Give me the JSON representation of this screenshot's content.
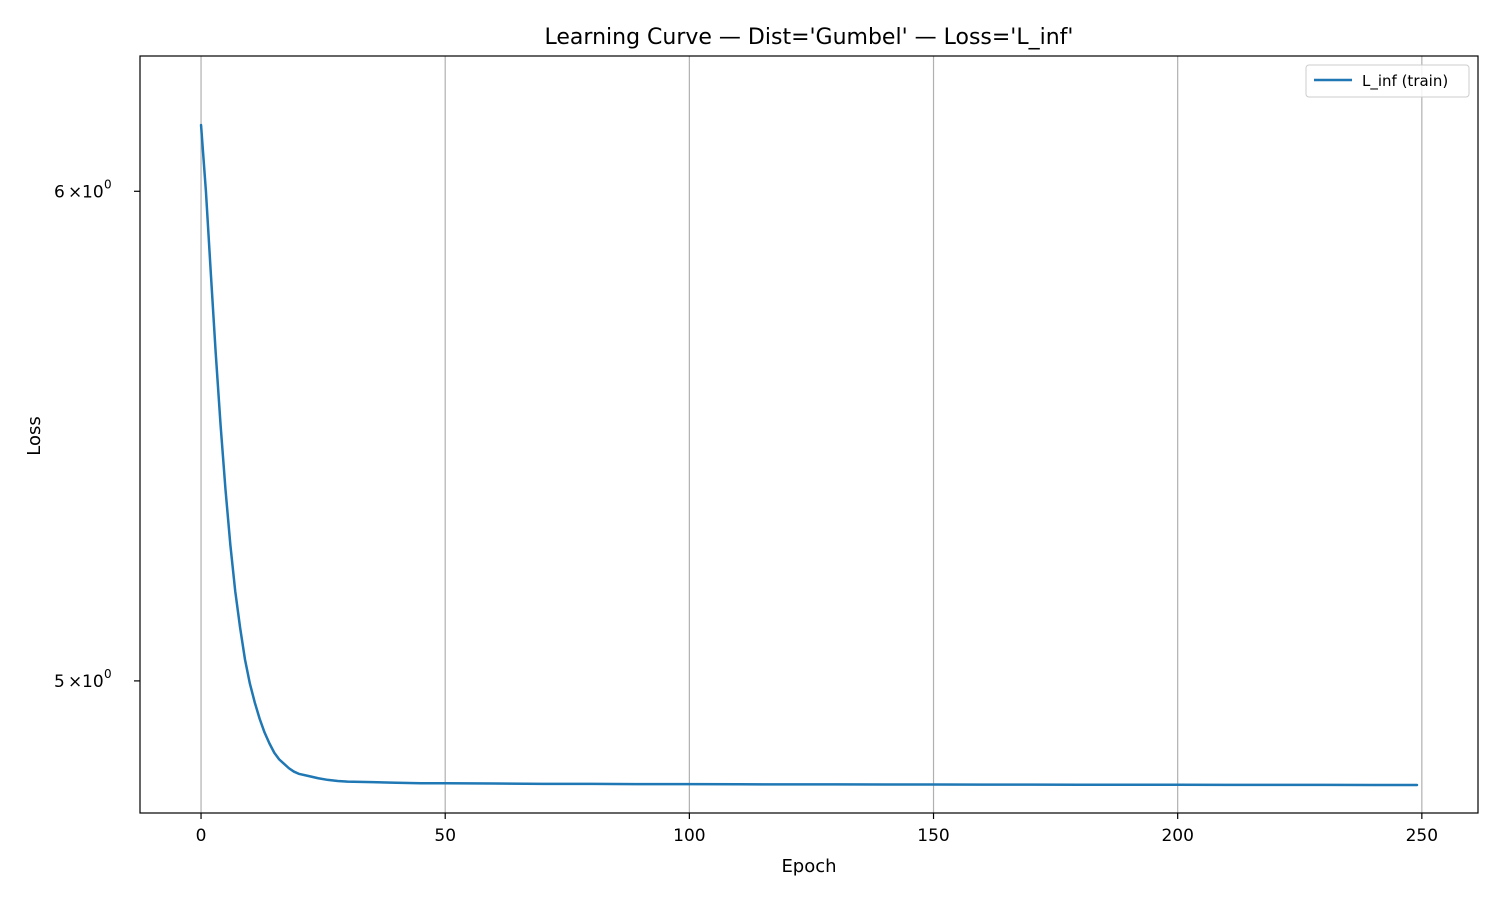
{
  "chart_data": {
    "type": "line",
    "title": "Learning Curve — Dist='Gumbel' — Loss='L_inf'",
    "xlabel": "Epoch",
    "ylabel": "Loss",
    "yscale": "log",
    "xlim": [
      -12.5,
      261.5
    ],
    "ylim": [
      4.76,
      6.31
    ],
    "x_ticks": [
      {
        "value": 0,
        "label": "0"
      },
      {
        "value": 50,
        "label": "50"
      },
      {
        "value": 100,
        "label": "100"
      },
      {
        "value": 150,
        "label": "150"
      },
      {
        "value": 200,
        "label": "200"
      },
      {
        "value": 250,
        "label": "250"
      }
    ],
    "y_ticks": [
      {
        "value": 6,
        "mantissa": "6",
        "base": "10",
        "exponent": "0"
      },
      {
        "value": 5,
        "mantissa": "5",
        "base": "10",
        "exponent": "0"
      }
    ],
    "grid": "x-major",
    "legend_position": "top-right",
    "colors": {
      "series": "#1f77b4",
      "grid": "#b0b0b0",
      "frame": "#000000"
    },
    "series": [
      {
        "name": "L_inf (train)",
        "x": [
          0,
          1,
          2,
          3,
          4,
          5,
          6,
          7,
          8,
          9,
          10,
          11,
          12,
          13,
          14,
          15,
          16,
          17,
          18,
          19,
          20,
          22,
          24,
          26,
          28,
          30,
          35,
          40,
          45,
          50,
          60,
          70,
          80,
          90,
          100,
          110,
          120,
          130,
          140,
          150,
          160,
          170,
          180,
          190,
          200,
          210,
          220,
          230,
          240,
          249
        ],
        "y": [
          6.15,
          6.0,
          5.82,
          5.65,
          5.5,
          5.37,
          5.26,
          5.17,
          5.1,
          5.04,
          4.995,
          4.96,
          4.93,
          4.905,
          4.885,
          4.868,
          4.856,
          4.848,
          4.84,
          4.834,
          4.83,
          4.826,
          4.822,
          4.819,
          4.817,
          4.816,
          4.815,
          4.814,
          4.813,
          4.813,
          4.8125,
          4.812,
          4.812,
          4.8115,
          4.8115,
          4.8112,
          4.811,
          4.811,
          4.8108,
          4.8107,
          4.8105,
          4.8105,
          4.8104,
          4.8103,
          4.8103,
          4.8102,
          4.8102,
          4.8101,
          4.81,
          4.81
        ]
      }
    ]
  }
}
